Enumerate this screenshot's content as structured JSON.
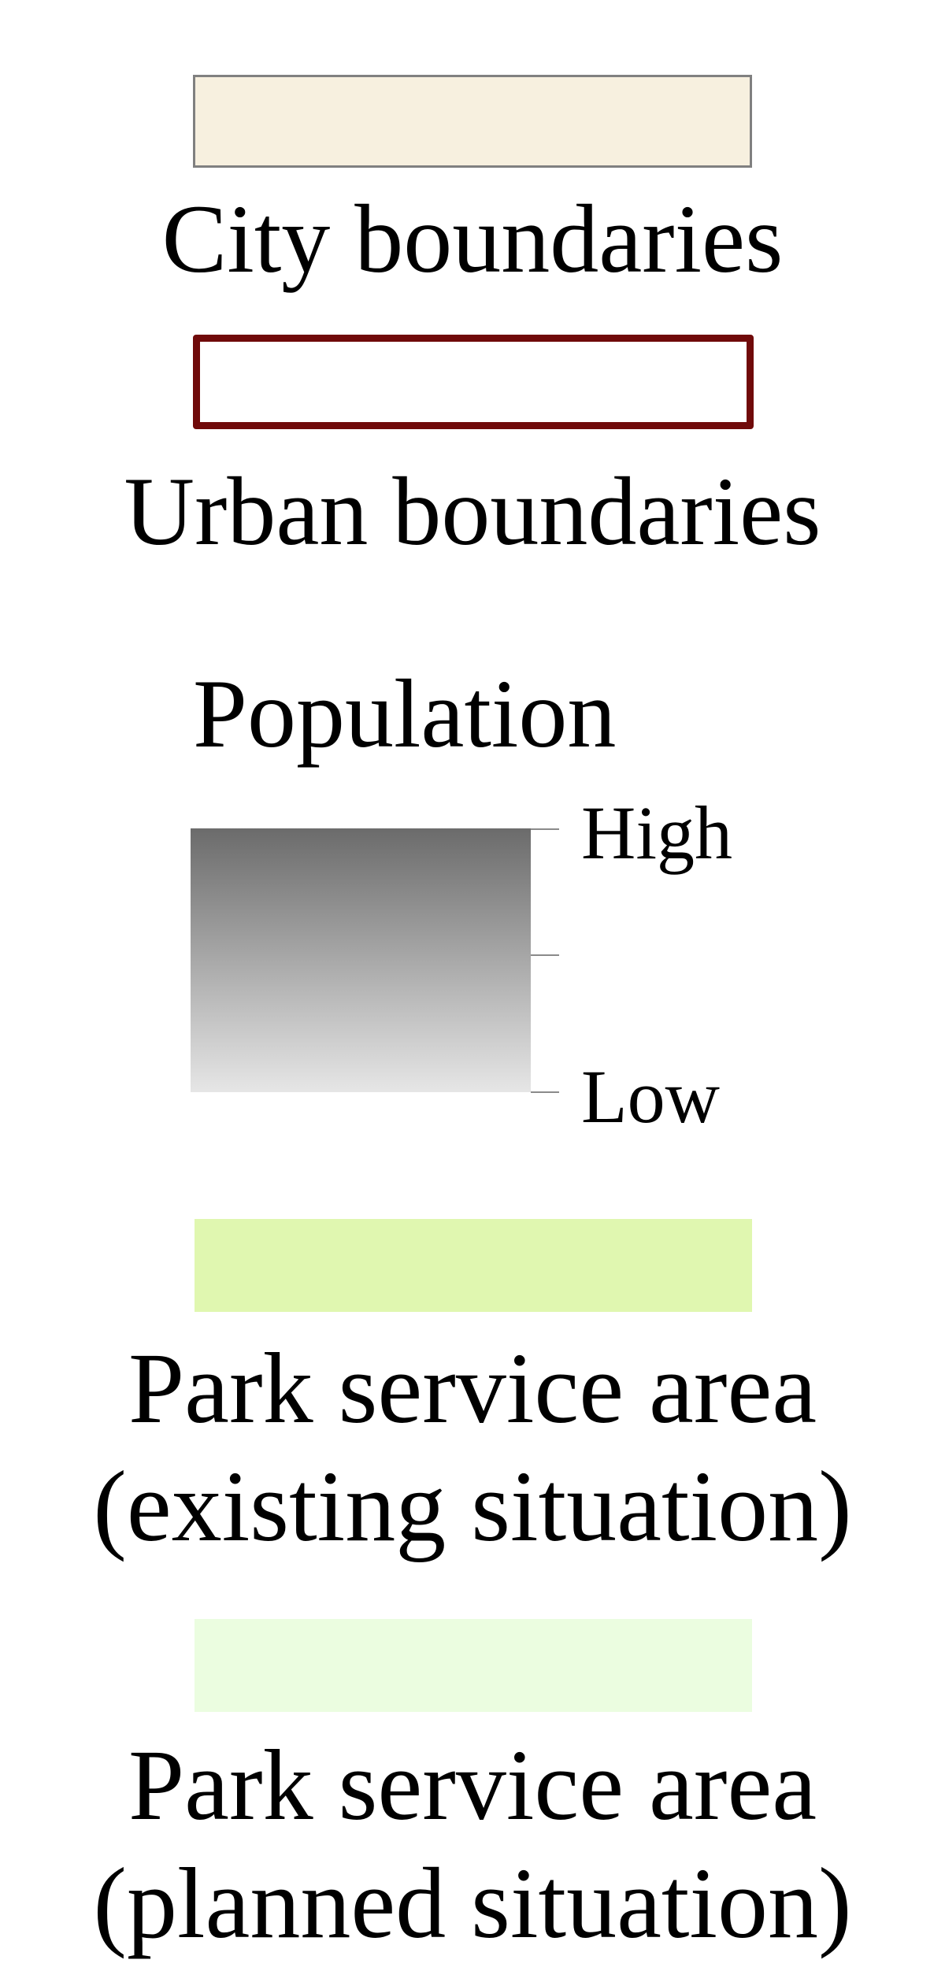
{
  "legend": {
    "city_boundaries": {
      "label": "City boundaries",
      "fill_color": "#f7f0df",
      "stroke_color": "#808080"
    },
    "urban_boundaries": {
      "label": "Urban boundaries",
      "stroke_color": "#700a0a"
    },
    "population": {
      "title": "Population",
      "high_label": "High",
      "low_label": "Low",
      "ramp_colors": [
        "#6b6b6b",
        "#e6e6e6"
      ]
    },
    "park_existing": {
      "label_line1": "Park service area",
      "label_line2": "(existing situation)",
      "fill_color": "#e0f7b0"
    },
    "park_planned": {
      "label_line1": "Park service area",
      "label_line2": "(planned situation)",
      "fill_color": "#ebfde0"
    }
  }
}
